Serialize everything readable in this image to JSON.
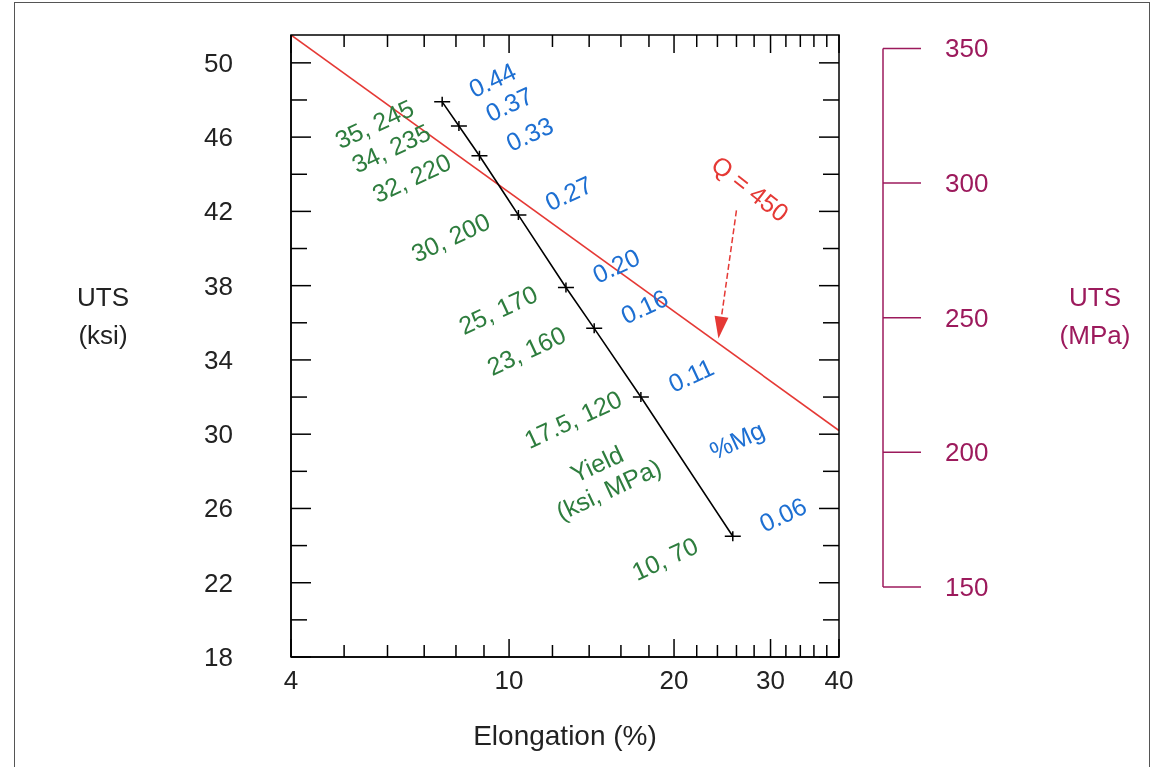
{
  "chart_data": {
    "type": "line",
    "xlabel": "Elongation (%)",
    "ylabel": "UTS (ksi)",
    "y2label": "UTS (MPa)",
    "log": "x",
    "xlim": [
      4,
      40
    ],
    "xticks": [
      4,
      {
        "value": 5,
        "label": null
      },
      {
        "value": 6,
        "label": null
      },
      {
        "value": 7,
        "label": null
      },
      {
        "value": 8,
        "label": null
      },
      {
        "value": 9,
        "label": null
      },
      10,
      {
        "value": 12,
        "label": null
      },
      {
        "value": 14,
        "label": null
      },
      {
        "value": 16,
        "label": null
      },
      {
        "value": 18,
        "label": null
      },
      20,
      {
        "value": 22,
        "label": null
      },
      {
        "value": 24,
        "label": null
      },
      {
        "value": 26,
        "label": null
      },
      {
        "value": 28,
        "label": null
      },
      30,
      {
        "value": 32,
        "label": null
      },
      {
        "value": 34,
        "label": null
      },
      {
        "value": 36,
        "label": null
      },
      {
        "value": 38,
        "label": null
      },
      40
    ],
    "ylim": [
      18,
      51.5
    ],
    "yticks": [
      18,
      {
        "value": 20,
        "label": null
      },
      22,
      {
        "value": 24,
        "label": null
      },
      26,
      {
        "value": 28,
        "label": null
      },
      30,
      {
        "value": 32,
        "label": null
      },
      34,
      {
        "value": 36,
        "label": null
      },
      38,
      {
        "value": 40,
        "label": null
      },
      42,
      {
        "value": 44,
        "label": null
      },
      46,
      {
        "value": 48,
        "label": null
      },
      50
    ],
    "y2lim": [
      124,
      355
    ],
    "y2ticks": [
      150,
      200,
      250,
      300,
      350
    ],
    "series": [
      {
        "color": "#e53935",
        "x": [
          4,
          40
        ],
        "values": [
          51.5,
          30.2
        ],
        "marker": "none"
      },
      {
        "color": "#000000",
        "x": [
          7.55,
          8.1,
          8.83,
          10.4,
          12.7,
          14.3,
          17.4,
          25.6
        ],
        "values": [
          47.9,
          46.6,
          45.0,
          41.8,
          37.9,
          35.7,
          32.0,
          24.5
        ],
        "marker": "cross"
      }
    ],
    "annotations": [
      "Q = 450",
      {
        "text": "35, 245",
        "x": 7.55,
        "y": 47.9
      },
      {
        "text": "34, 235",
        "x": 8.1,
        "y": 46.6
      },
      {
        "text": "32, 220",
        "x": 8.83,
        "y": 45.0
      },
      {
        "text": "30, 200",
        "x": 10.4,
        "y": 41.8
      },
      {
        "text": "25, 170",
        "x": 12.7,
        "y": 37.9
      },
      {
        "text": "23, 160",
        "x": 14.3,
        "y": 35.7
      },
      {
        "text": "17.5, 120",
        "x": 17.4,
        "y": 32.0
      },
      {
        "text": "10, 70",
        "x": 25.6,
        "y": 24.5
      },
      "Yield (ksi, MPa)",
      {
        "text": "0.44",
        "x": 7.55,
        "y": 47.9
      },
      {
        "text": "0.37",
        "x": 8.1,
        "y": 46.6
      },
      {
        "text": "0.33",
        "x": 8.83,
        "y": 45.0
      },
      {
        "text": "0.27",
        "x": 10.4,
        "y": 41.8
      },
      {
        "text": "0.20",
        "x": 12.7,
        "y": 37.9
      },
      {
        "text": "0.16",
        "x": 14.3,
        "y": 35.7
      },
      {
        "text": "0.11",
        "x": 17.4,
        "y": 32.0
      },
      {
        "text": "0.06",
        "x": 25.6,
        "y": 24.5
      },
      {
        "text": "%Mg",
        "x": 21.1,
        "y": 28.5
      }
    ]
  }
}
